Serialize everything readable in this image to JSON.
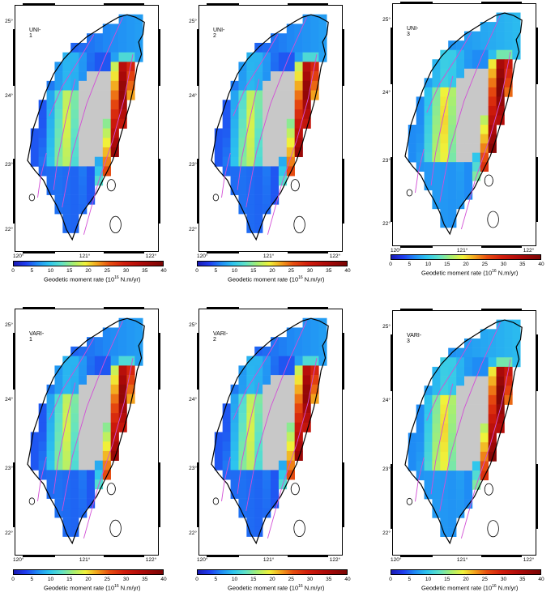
{
  "panels": [
    {
      "label": "UNI-1"
    },
    {
      "label": "UNI-2"
    },
    {
      "label": "UNI-3"
    },
    {
      "label": "VARI-1"
    },
    {
      "label": "VARI-2"
    },
    {
      "label": "VARI-3"
    }
  ],
  "lat_labels": [
    "25°",
    "24°",
    "23°",
    "22°"
  ],
  "lon_labels": [
    "120°",
    "121°",
    "122°"
  ],
  "colorbar": {
    "title": "Geodetic moment rate (10",
    "title_exp": "16",
    "title_unit": " N.m/yr)",
    "ticks": [
      "0",
      "5",
      "10",
      "15",
      "20",
      "25",
      "30",
      "35",
      "40"
    ],
    "min": 0,
    "max": 40
  },
  "colors": {
    "no_data": "#c8c8c8",
    "fault": "#d24fd6",
    "coast": "#000000"
  }
}
